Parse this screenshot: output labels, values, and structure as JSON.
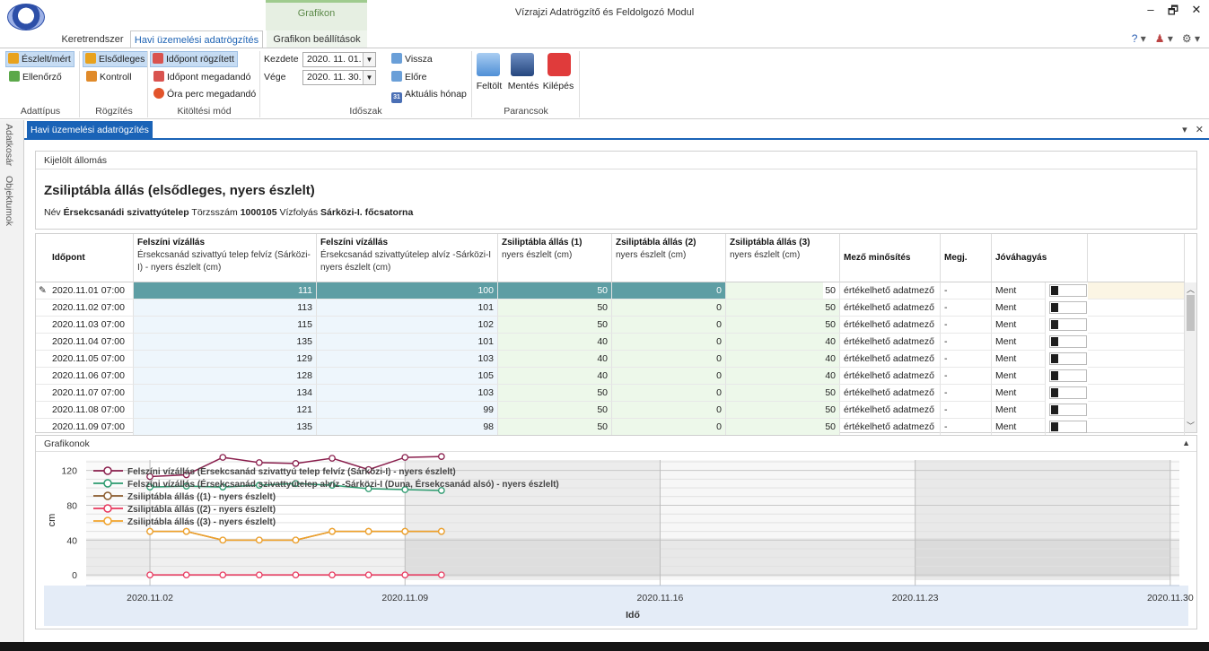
{
  "window": {
    "title": "Vízrajzi Adatrögzítő és Feldolgozó Modul",
    "context_tab_group": "Grafikon",
    "controls": {
      "minimize": "–",
      "maximize": "🗗",
      "close": "✕"
    }
  },
  "ribbon_tabs": [
    "Keretrendszer",
    "Havi üzemelési adatrögzítés",
    "Grafikon beállítások"
  ],
  "ribbon": {
    "adattipus": {
      "label": "Adattípus",
      "items": [
        "Észlelt/mért",
        "Ellenőrző"
      ]
    },
    "rogzites": {
      "label": "Rögzítés",
      "items": [
        "Elsődleges",
        "Kontroll"
      ]
    },
    "kitoltesi_mod": {
      "label": "Kitöltési mód",
      "items": [
        "Időpont rögzített",
        "Időpont megadandó",
        "Óra perc megadandó"
      ]
    },
    "idoszak": {
      "label": "Időszak",
      "kezdete_label": "Kezdete",
      "kezdete_value": "2020. 11. 01.",
      "vege_label": "Vége",
      "vege_value": "2020. 11. 30.",
      "nav": [
        "Vissza",
        "Előre",
        "Aktuális hónap"
      ],
      "calendar_day": "31"
    },
    "parancsok": {
      "label": "Parancsok",
      "items": [
        "Feltölt",
        "Mentés",
        "Kilépés"
      ]
    }
  },
  "side_tabs": [
    "Adatkosár",
    "Objektumok"
  ],
  "doc_tab": {
    "label": "Havi üzemelési adatrögzítés",
    "menu": "▾",
    "close": "✕"
  },
  "station": {
    "header": "Kijelölt állomás",
    "title": "Zsiliptábla állás (elsődleges, nyers észlelt)",
    "name_label": "Név",
    "name": "Érsekcsanádi szivattyútelep",
    "id_label": "Törzsszám",
    "id": "1000105",
    "river_label": "Vízfolyás",
    "river": "Sárközi-I. főcsatorna"
  },
  "grid": {
    "columns": [
      {
        "title": "Időpont",
        "sub": ""
      },
      {
        "title": "Felszíni vízállás",
        "sub": "Érsekcsanád szivattyú telep felvíz  (Sárközi-I) - nyers észlelt (cm)"
      },
      {
        "title": "Felszíni vízállás",
        "sub": "Érsekcsanád szivattyútelep alvíz -Sárközi-I nyers észlelt (cm)"
      },
      {
        "title": "Zsiliptábla állás (1)",
        "sub": "nyers észlelt (cm)"
      },
      {
        "title": "Zsiliptábla állás (2)",
        "sub": "nyers észlelt (cm)"
      },
      {
        "title": "Zsiliptábla állás (3)",
        "sub": "nyers észlelt (cm)"
      },
      {
        "title": "Mező minősítés",
        "sub": ""
      },
      {
        "title": "Megj.",
        "sub": ""
      },
      {
        "title": "Jóváhagyás",
        "sub": ""
      }
    ],
    "rows": [
      [
        "2020.11.01 07:00",
        "111",
        "100",
        "50",
        "0",
        "50",
        "értékelhető adatmező",
        "-",
        "Ment"
      ],
      [
        "2020.11.02 07:00",
        "113",
        "101",
        "50",
        "0",
        "50",
        "értékelhető adatmező",
        "-",
        "Ment"
      ],
      [
        "2020.11.03 07:00",
        "115",
        "102",
        "50",
        "0",
        "50",
        "értékelhető adatmező",
        "-",
        "Ment"
      ],
      [
        "2020.11.04 07:00",
        "135",
        "101",
        "40",
        "0",
        "40",
        "értékelhető adatmező",
        "-",
        "Ment"
      ],
      [
        "2020.11.05 07:00",
        "129",
        "103",
        "40",
        "0",
        "40",
        "értékelhető adatmező",
        "-",
        "Ment"
      ],
      [
        "2020.11.06 07:00",
        "128",
        "105",
        "40",
        "0",
        "40",
        "értékelhető adatmező",
        "-",
        "Ment"
      ],
      [
        "2020.11.07 07:00",
        "134",
        "103",
        "50",
        "0",
        "50",
        "értékelhető adatmező",
        "-",
        "Ment"
      ],
      [
        "2020.11.08 07:00",
        "121",
        "99",
        "50",
        "0",
        "50",
        "értékelhető adatmező",
        "-",
        "Ment"
      ],
      [
        "2020.11.09 07:00",
        "135",
        "98",
        "50",
        "0",
        "50",
        "értékelhető adatmező",
        "-",
        "Ment"
      ]
    ]
  },
  "charts_panel": {
    "header": "Grafikonok"
  },
  "chart_data": {
    "type": "line",
    "xlabel": "Idő",
    "ylabel": "cm",
    "x_range": [
      "2020.11.01",
      "2020.11.30"
    ],
    "ylim": [
      -6,
      132
    ],
    "yticks": [
      0,
      40,
      80,
      120
    ],
    "xticks": [
      "2020.11.02",
      "2020.11.09",
      "2020.11.16",
      "2020.11.23",
      "2020.11.30"
    ],
    "x": [
      "2020.11.02",
      "2020.11.03",
      "2020.11.04",
      "2020.11.05",
      "2020.11.06",
      "2020.11.07",
      "2020.11.08",
      "2020.11.09",
      "2020.11.10"
    ],
    "legend_position": "top-left",
    "series": [
      {
        "name": "Felszíni vízállás (Érsekcsanád szivattyú telep felvíz  (Sárközi-I) - nyers észlelt)",
        "color": "#8a1f4d",
        "values": [
          113,
          115,
          135,
          129,
          128,
          134,
          121,
          135,
          136
        ]
      },
      {
        "name": "Felszíni vízállás (Érsekcsanád szivattyútelep alvíz -Sárközi-I  (Duna, Érsekcsanád alsó) - nyers észlelt)",
        "color": "#2b9a6e",
        "values": [
          101,
          102,
          101,
          103,
          105,
          103,
          99,
          98,
          97
        ]
      },
      {
        "name": "Zsiliptábla állás ((1) - nyers észlelt)",
        "color": "#8a5a2b",
        "values": [
          50,
          50,
          40,
          40,
          40,
          50,
          50,
          50,
          50
        ]
      },
      {
        "name": "Zsiliptábla állás ((2) - nyers észlelt)",
        "color": "#e8375d",
        "values": [
          0,
          0,
          0,
          0,
          0,
          0,
          0,
          0,
          0
        ]
      },
      {
        "name": "Zsiliptábla állás ((3) - nyers észlelt)",
        "color": "#f0a22a",
        "values": [
          50,
          50,
          40,
          40,
          40,
          50,
          50,
          50,
          50
        ]
      }
    ]
  }
}
